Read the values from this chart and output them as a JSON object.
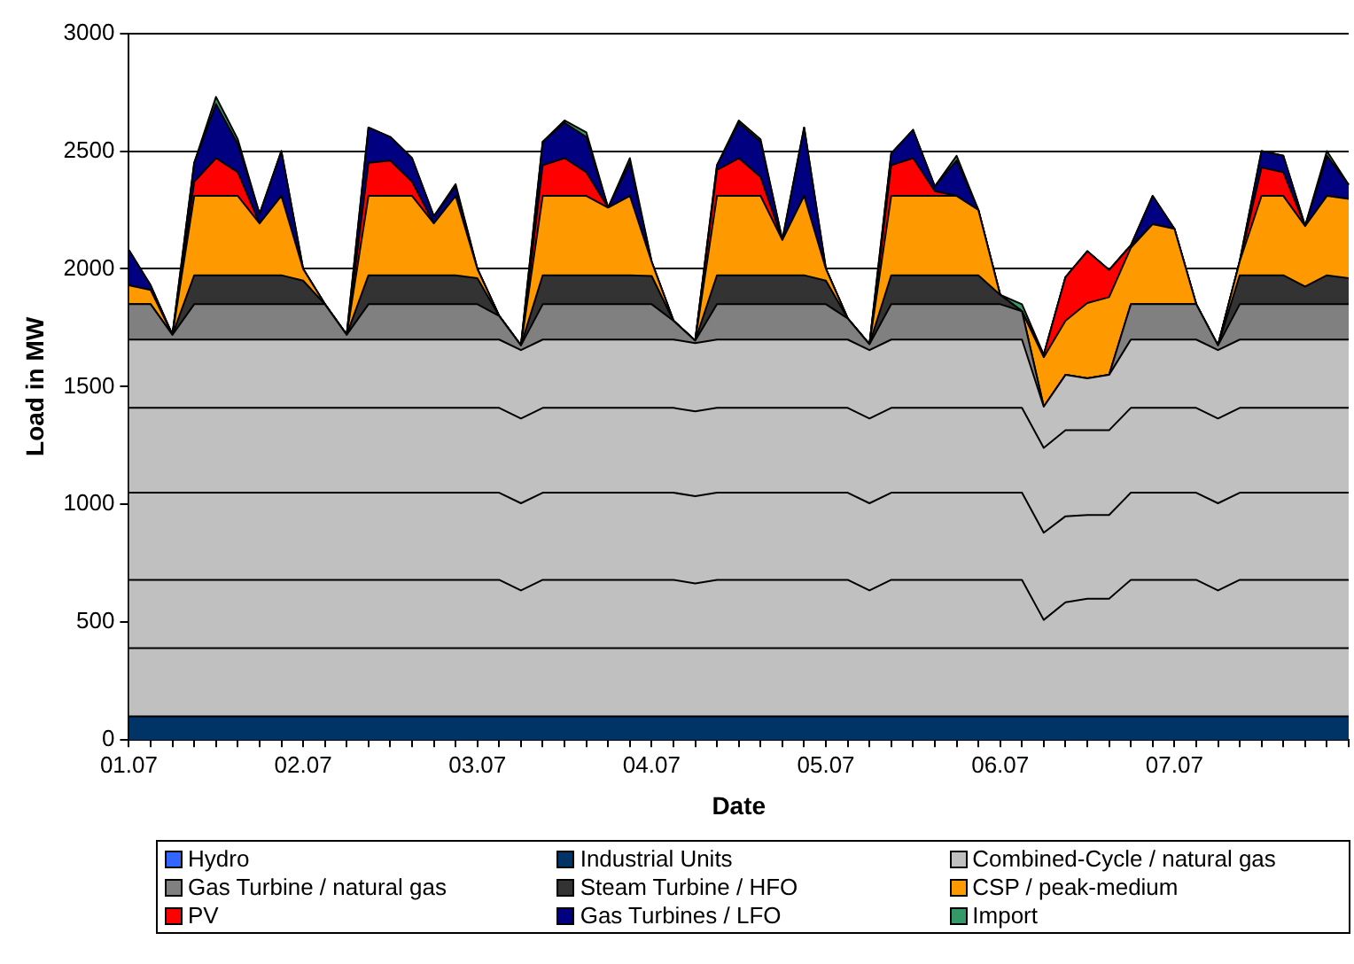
{
  "chart_data": {
    "type": "area",
    "stacked": true,
    "xlabel": "Date",
    "ylabel": "Load in MW",
    "categories": [
      "01.07",
      null,
      null,
      null,
      null,
      null,
      null,
      null,
      "02.07",
      null,
      null,
      null,
      null,
      null,
      null,
      null,
      "03.07",
      null,
      null,
      null,
      null,
      null,
      null,
      null,
      "04.07",
      null,
      null,
      null,
      null,
      null,
      null,
      null,
      "05.07",
      null,
      null,
      null,
      null,
      null,
      null,
      null,
      "06.07",
      null,
      null,
      null,
      null,
      null,
      null,
      null,
      "07.07",
      null,
      null,
      null,
      null,
      null,
      null,
      null,
      null
    ],
    "ylim": [
      0,
      3000
    ],
    "yticks": [
      0,
      500,
      1000,
      1500,
      2000,
      2500,
      3000
    ],
    "grid": "y",
    "legend": "bottom",
    "series": [
      {
        "name": "Hydro",
        "color": "#3366ff",
        "values": [
          null,
          null,
          null,
          null,
          null,
          null,
          null,
          null,
          null,
          null,
          null,
          null,
          null,
          null,
          null,
          null,
          null,
          null,
          null,
          null,
          null,
          null,
          null,
          null,
          null,
          null,
          null,
          null,
          null,
          null,
          null,
          null,
          null,
          null,
          null,
          null,
          null,
          null,
          null,
          null,
          null,
          null,
          null,
          null,
          null,
          null,
          null,
          null,
          null,
          null,
          null,
          null,
          null,
          null,
          null,
          null,
          null
        ]
      },
      {
        "name": "Industrial Units",
        "color": "#003366",
        "values": [
          100,
          100,
          100,
          100,
          100,
          100,
          100,
          100,
          100,
          100,
          100,
          100,
          100,
          100,
          100,
          100,
          100,
          100,
          100,
          100,
          100,
          100,
          100,
          100,
          100,
          100,
          100,
          100,
          100,
          100,
          100,
          100,
          100,
          100,
          100,
          100,
          100,
          100,
          100,
          100,
          100,
          100,
          100,
          100,
          100,
          100,
          100,
          100,
          100,
          100,
          100,
          100,
          100,
          100,
          100,
          100,
          100
        ]
      },
      {
        "name": "Combined-Cycle / natural gas",
        "color": "#c0c0c0",
        "values": [
          290,
          290,
          290,
          290,
          290,
          290,
          290,
          290,
          290,
          290,
          290,
          290,
          290,
          290,
          290,
          290,
          290,
          290,
          290,
          290,
          290,
          290,
          290,
          290,
          290,
          290,
          290,
          290,
          290,
          290,
          290,
          290,
          290,
          290,
          290,
          290,
          290,
          290,
          290,
          290,
          290,
          290,
          290,
          290,
          290,
          290,
          290,
          290,
          290,
          290,
          290,
          290,
          290,
          290,
          290,
          290,
          290
        ]
      },
      {
        "color": "#c0c0c0",
        "values": [
          290,
          290,
          290,
          290,
          290,
          290,
          290,
          290,
          290,
          290,
          290,
          290,
          290,
          290,
          290,
          290,
          290,
          290,
          245,
          290,
          290,
          290,
          290,
          290,
          290,
          290,
          275,
          290,
          290,
          290,
          290,
          290,
          290,
          290,
          245,
          290,
          290,
          290,
          290,
          290,
          290,
          290,
          120,
          195,
          210,
          210,
          290,
          290,
          290,
          290,
          245,
          290,
          290,
          290,
          290,
          290,
          290
        ]
      },
      {
        "color": "#c0c0c0",
        "values": [
          370,
          370,
          370,
          370,
          370,
          370,
          370,
          370,
          370,
          370,
          370,
          370,
          370,
          370,
          370,
          370,
          370,
          370,
          370,
          370,
          370,
          370,
          370,
          370,
          370,
          370,
          370,
          370,
          370,
          370,
          370,
          370,
          370,
          370,
          370,
          370,
          370,
          370,
          370,
          370,
          370,
          370,
          370,
          365,
          355,
          355,
          370,
          370,
          370,
          370,
          370,
          370,
          370,
          370,
          370,
          370,
          370
        ]
      },
      {
        "color": "#c0c0c0",
        "values": [
          360,
          360,
          360,
          360,
          360,
          360,
          360,
          360,
          360,
          360,
          360,
          360,
          360,
          360,
          360,
          360,
          360,
          360,
          360,
          360,
          360,
          360,
          360,
          360,
          360,
          360,
          360,
          360,
          360,
          360,
          360,
          360,
          360,
          360,
          360,
          360,
          360,
          360,
          360,
          360,
          360,
          360,
          360,
          365,
          360,
          360,
          360,
          360,
          360,
          360,
          360,
          360,
          360,
          360,
          360,
          360,
          360
        ]
      },
      {
        "color": "#c0c0c0",
        "values": [
          290,
          290,
          290,
          290,
          290,
          290,
          290,
          290,
          290,
          290,
          290,
          290,
          290,
          290,
          290,
          290,
          290,
          290,
          290,
          290,
          290,
          290,
          290,
          290,
          290,
          290,
          290,
          290,
          290,
          290,
          290,
          290,
          290,
          290,
          290,
          290,
          290,
          290,
          290,
          290,
          290,
          290,
          175,
          235,
          220,
          235,
          290,
          290,
          290,
          290,
          290,
          290,
          290,
          290,
          290,
          290,
          290
        ]
      },
      {
        "name": "Gas Turbine / natural gas",
        "color": "#808080",
        "values": [
          150,
          150,
          20,
          150,
          150,
          150,
          150,
          150,
          150,
          150,
          20,
          150,
          150,
          150,
          150,
          150,
          150,
          100,
          20,
          150,
          150,
          150,
          150,
          150,
          150,
          80,
          10,
          150,
          150,
          150,
          150,
          150,
          150,
          90,
          25,
          150,
          150,
          150,
          150,
          150,
          150,
          120,
          0,
          0,
          0,
          0,
          150,
          150,
          150,
          150,
          20,
          150,
          150,
          150,
          150,
          150,
          150
        ]
      },
      {
        "name": "Steam Turbine / HFO",
        "color": "#333333",
        "values": [
          0,
          0,
          0,
          123,
          123,
          123,
          123,
          123,
          100,
          0,
          0,
          123,
          123,
          123,
          123,
          123,
          110,
          0,
          0,
          123,
          123,
          123,
          123,
          123,
          120,
          0,
          0,
          123,
          123,
          123,
          123,
          123,
          100,
          0,
          0,
          123,
          123,
          123,
          123,
          123,
          40,
          0,
          0,
          0,
          0,
          0,
          0,
          0,
          0,
          0,
          0,
          123,
          123,
          123,
          75,
          123,
          110
        ]
      },
      {
        "name": "CSP / peak-medium",
        "color": "#ff9900",
        "values": [
          80,
          60,
          0,
          337,
          337,
          337,
          220,
          337,
          50,
          0,
          0,
          337,
          337,
          337,
          220,
          337,
          40,
          0,
          0,
          337,
          337,
          337,
          287,
          337,
          60,
          0,
          0,
          337,
          337,
          337,
          150,
          337,
          50,
          0,
          0,
          337,
          337,
          337,
          337,
          277,
          0,
          0,
          210,
          230,
          320,
          330,
          240,
          340,
          320,
          0,
          0,
          60,
          337,
          337,
          257,
          337,
          337
        ]
      },
      {
        "name": "PV",
        "color": "#ff0000",
        "values": [
          0,
          0,
          0,
          60,
          160,
          100,
          0,
          0,
          0,
          0,
          0,
          140,
          150,
          60,
          0,
          0,
          0,
          0,
          0,
          130,
          160,
          100,
          0,
          0,
          0,
          0,
          0,
          110,
          160,
          80,
          0,
          0,
          0,
          0,
          0,
          130,
          160,
          20,
          0,
          0,
          0,
          0,
          10,
          185,
          220,
          115,
          10,
          0,
          0,
          0,
          0,
          0,
          120,
          100,
          0,
          0,
          0
        ]
      },
      {
        "name": "Gas Turbines / LFO",
        "color": "#000080",
        "values": [
          150,
          20,
          0,
          80,
          230,
          120,
          40,
          190,
          0,
          0,
          0,
          150,
          100,
          100,
          30,
          40,
          0,
          0,
          0,
          100,
          150,
          150,
          0,
          140,
          0,
          0,
          0,
          20,
          150,
          150,
          0,
          290,
          0,
          0,
          0,
          50,
          120,
          20,
          150,
          0,
          0,
          0,
          0,
          0,
          0,
          0,
          0,
          120,
          0,
          0,
          0,
          0,
          70,
          70,
          0,
          170,
          60
        ]
      },
      {
        "name": "Import",
        "color": "#339966",
        "values": [
          0,
          0,
          0,
          0,
          30,
          20,
          0,
          0,
          0,
          0,
          0,
          0,
          0,
          0,
          0,
          10,
          0,
          0,
          0,
          0,
          10,
          20,
          0,
          20,
          0,
          0,
          0,
          0,
          10,
          10,
          0,
          0,
          0,
          0,
          0,
          0,
          0,
          0,
          20,
          0,
          0,
          30,
          0,
          0,
          0,
          0,
          0,
          0,
          0,
          0,
          0,
          0,
          0,
          0,
          0,
          20,
          0
        ]
      }
    ]
  }
}
